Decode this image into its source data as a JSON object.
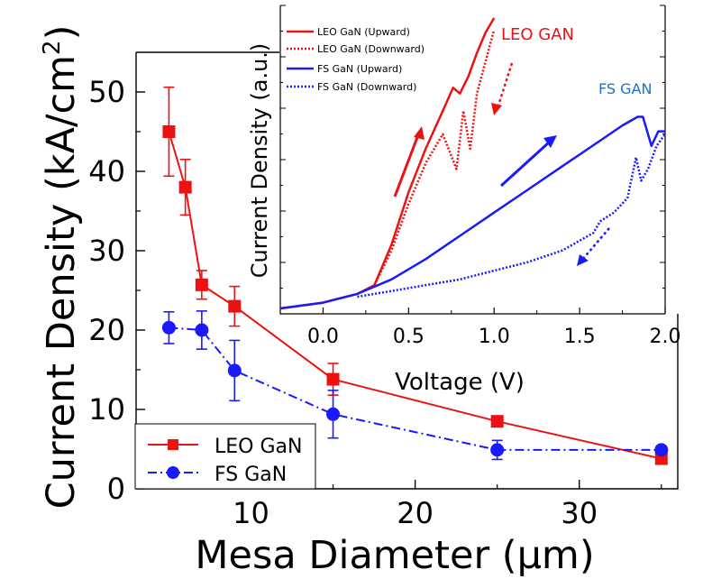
{
  "chart_data": [
    {
      "type": "scatter",
      "xlabel": "Mesa Diameter (μm)",
      "ylabel": "Current Density (kA/cm",
      "ylabel_sup": "2",
      "ylabel_close": ")",
      "xlim": [
        3,
        36
      ],
      "ylim": [
        0,
        55
      ],
      "xticks": [
        10,
        20,
        30
      ],
      "yticks": [
        0,
        10,
        20,
        30,
        40,
        50
      ],
      "legend_position": "bottom-left",
      "series": [
        {
          "name": "LEO GaN",
          "color": "#ee1111",
          "marker": "square",
          "line": "solid",
          "x": [
            5,
            6,
            7,
            9,
            15,
            25,
            35
          ],
          "y": [
            45,
            38,
            25.7,
            23,
            13.8,
            8.5,
            3.8
          ],
          "err": [
            5.6,
            3.5,
            1.8,
            2.5,
            2.0,
            0.3,
            0.3
          ]
        },
        {
          "name": "FS GaN",
          "color": "#1a1aff",
          "marker": "circle",
          "line": "dashdot",
          "x": [
            5,
            7,
            9,
            15,
            25,
            35
          ],
          "y": [
            20.3,
            20,
            14.9,
            9.4,
            4.9,
            4.9
          ],
          "err": [
            2.0,
            2.4,
            3.8,
            3.0,
            1.2,
            0.5
          ]
        }
      ]
    },
    {
      "type": "line",
      "xlabel": "Voltage (V)",
      "ylabel": "Current Density (a.u.)",
      "xlim": [
        -0.25,
        2.0
      ],
      "ylim": [
        0,
        1
      ],
      "xticks": [
        "0.0",
        "0.5",
        "1.0",
        "1.5",
        "2.0"
      ],
      "legend_position": "top-left",
      "annotations": [
        {
          "text": "LEO GAN",
          "color": "#ee1111"
        },
        {
          "text": "FS GAN",
          "color": "#1a73c8"
        }
      ],
      "series": [
        {
          "name": "LEO GaN (Upward)",
          "color": "#ee1111",
          "style": "solid",
          "x": [
            -0.25,
            0.0,
            0.2,
            0.3,
            0.4,
            0.5,
            0.6,
            0.7,
            0.76,
            0.8,
            0.85,
            0.9,
            0.95,
            1.0
          ],
          "y": [
            0.0,
            0.02,
            0.05,
            0.08,
            0.22,
            0.4,
            0.55,
            0.68,
            0.76,
            0.74,
            0.8,
            0.88,
            0.95,
            1.0
          ]
        },
        {
          "name": "LEO GaN (Downward)",
          "color": "#ee1111",
          "style": "dotted",
          "x": [
            0.3,
            0.4,
            0.5,
            0.6,
            0.7,
            0.78,
            0.82,
            0.86,
            0.9,
            0.95,
            1.0
          ],
          "y": [
            0.08,
            0.2,
            0.36,
            0.5,
            0.6,
            0.48,
            0.68,
            0.55,
            0.74,
            0.85,
            0.96
          ]
        },
        {
          "name": "FS GaN  (Upward)",
          "color": "#1a1aff",
          "style": "solid",
          "x": [
            -0.25,
            0.0,
            0.2,
            0.4,
            0.6,
            0.8,
            1.0,
            1.2,
            1.4,
            1.6,
            1.75,
            1.84,
            1.87,
            1.92,
            1.96,
            2.0
          ],
          "y": [
            0.0,
            0.02,
            0.05,
            0.1,
            0.17,
            0.25,
            0.33,
            0.41,
            0.49,
            0.57,
            0.63,
            0.66,
            0.66,
            0.56,
            0.61,
            0.61
          ]
        },
        {
          "name": "FS GaN  (Downward)",
          "color": "#1a1aff",
          "style": "dotted",
          "x": [
            0.2,
            0.4,
            0.6,
            0.8,
            1.0,
            1.2,
            1.4,
            1.58,
            1.62,
            1.7,
            1.78,
            1.83,
            1.86,
            1.9,
            1.95,
            2.0
          ],
          "y": [
            0.04,
            0.06,
            0.08,
            0.1,
            0.13,
            0.16,
            0.2,
            0.26,
            0.3,
            0.33,
            0.38,
            0.52,
            0.44,
            0.48,
            0.56,
            0.6
          ]
        }
      ]
    }
  ]
}
